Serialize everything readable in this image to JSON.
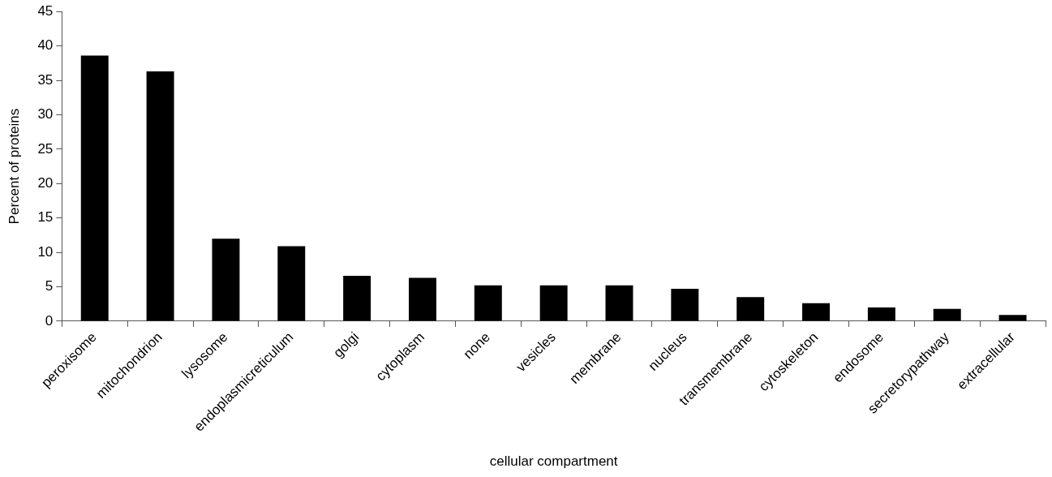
{
  "chart_data": {
    "type": "bar",
    "xlabel": "cellular compartment",
    "ylabel": "Percent of proteins",
    "categories": [
      "peroxisome",
      "mitochondrion",
      "lysosome",
      "endoplasmicreticulum",
      "golgi",
      "cytoplasm",
      "none",
      "vesicles",
      "membrane",
      "nucleus",
      "transmembrane",
      "cytoskeleton",
      "endosome",
      "secretorypathway",
      "extracellular"
    ],
    "values": [
      38.6,
      36.3,
      12.0,
      10.9,
      6.6,
      6.3,
      5.2,
      5.2,
      5.2,
      4.7,
      3.5,
      2.6,
      2.0,
      1.8,
      0.9
    ],
    "color": "#000000",
    "ylim": [
      0,
      45
    ],
    "yticks": [
      0,
      5,
      10,
      15,
      20,
      25,
      30,
      35,
      40,
      45
    ],
    "grid": false,
    "legend": false
  }
}
